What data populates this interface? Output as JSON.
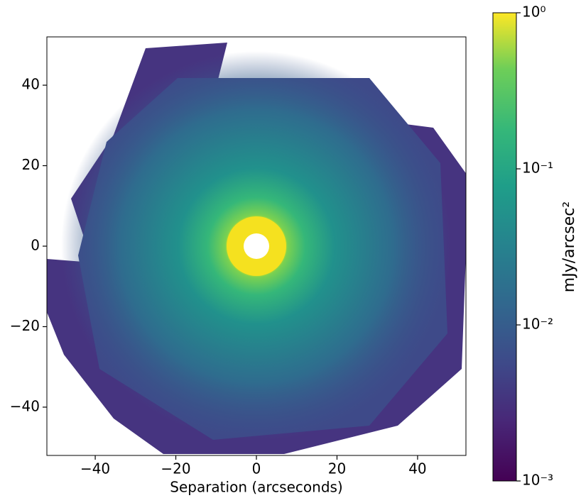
{
  "chart_data": {
    "type": "image",
    "xlabel": "Separation (arcseconds)",
    "xlim": [
      -52,
      52
    ],
    "ylim": [
      -52,
      52
    ],
    "xticks": [
      {
        "value": -40,
        "label": "−40"
      },
      {
        "value": -20,
        "label": "−20"
      },
      0,
      20,
      40
    ],
    "yticks": [
      {
        "value": -40,
        "label": "−40"
      },
      {
        "value": -20,
        "label": "−20"
      },
      0,
      20,
      40
    ],
    "colorbar": {
      "label": "mJy/arcsec²",
      "scale": "log",
      "lim": [
        0.001,
        1
      ],
      "ticks": [
        {
          "value": 0.001,
          "label": "10⁻³"
        },
        {
          "value": 0.01,
          "label": "10⁻²"
        },
        {
          "value": 0.1,
          "label": "10⁻¹"
        },
        {
          "value": 1,
          "label": "10⁰"
        }
      ]
    }
  }
}
